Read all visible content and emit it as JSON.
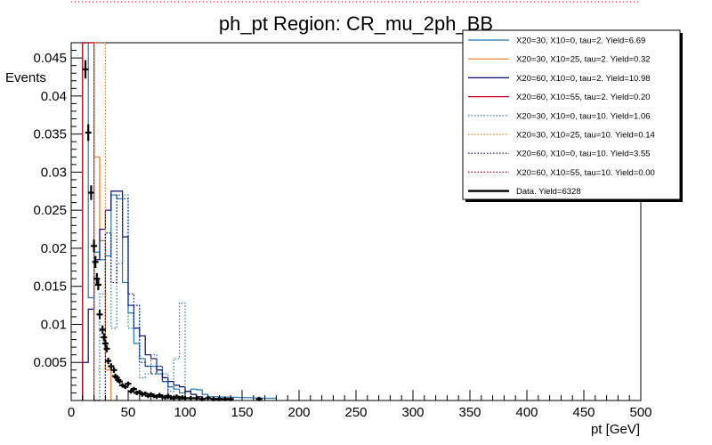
{
  "chart_data": {
    "type": "histogram",
    "title": "ph_pt Region: CR_mu_2ph_BB",
    "xlabel": "pt [GeV]",
    "ylabel": "Events",
    "xlim": [
      0,
      500
    ],
    "ylim": [
      0,
      0.047
    ],
    "bin_width": 5,
    "x_ticks": [
      0,
      50,
      100,
      150,
      200,
      250,
      300,
      350,
      400,
      450,
      500
    ],
    "y_ticks": [
      0.005,
      0.01,
      0.015,
      0.02,
      0.025,
      0.03,
      0.035,
      0.04,
      0.045
    ],
    "y_tick_labels": [
      "0.005",
      "0.01",
      "0.015",
      "0.02",
      "0.025",
      "0.03",
      "0.035",
      "0.04",
      "0.045"
    ],
    "legend_position": "top-right",
    "series": [
      {
        "name": "X20=30, X10=0, tau=2. Yield=6.69",
        "color": "#1f77b4",
        "dash": "solid",
        "bins": [
          [
            10,
            15,
            0.047
          ],
          [
            15,
            20,
            0.0135
          ],
          [
            20,
            25,
            0.0195
          ],
          [
            25,
            30,
            0.0185
          ],
          [
            30,
            35,
            0.019
          ],
          [
            35,
            40,
            0.027
          ],
          [
            40,
            45,
            0.0265
          ],
          [
            45,
            50,
            0.0155
          ],
          [
            50,
            55,
            0.0115
          ],
          [
            55,
            60,
            0.0075
          ],
          [
            60,
            65,
            0.0055
          ],
          [
            65,
            70,
            0.0045
          ],
          [
            70,
            75,
            0.0045
          ],
          [
            75,
            80,
            0.0035
          ],
          [
            80,
            85,
            0.0025
          ],
          [
            85,
            90,
            0.0018
          ],
          [
            90,
            95,
            0.0015
          ],
          [
            95,
            100,
            0.001
          ],
          [
            100,
            105,
            0.0012
          ],
          [
            105,
            110,
            0.0015
          ],
          [
            110,
            115,
            0.0014
          ],
          [
            115,
            120,
            0.0008
          ],
          [
            120,
            125,
            0.0005
          ],
          [
            175,
            180,
            0.0003
          ]
        ]
      },
      {
        "name": "X20=30, X10=25, tau=2. Yield=0.32",
        "color": "#e3761c",
        "dash": "solid",
        "bins": [
          [
            10,
            15,
            0.047
          ],
          [
            15,
            20,
            0.047
          ],
          [
            20,
            25,
            0.032
          ],
          [
            25,
            30,
            0.021
          ],
          [
            30,
            35,
            0.004
          ]
        ]
      },
      {
        "name": "X20=60, X10=0, tau=2. Yield=10.98",
        "color": "#0a0a6e",
        "dash": "solid",
        "bins": [
          [
            10,
            15,
            0.005
          ],
          [
            15,
            20,
            0.012
          ],
          [
            20,
            25,
            0.0185
          ],
          [
            25,
            30,
            0.0225
          ],
          [
            30,
            35,
            0.025
          ],
          [
            35,
            40,
            0.0275
          ],
          [
            40,
            45,
            0.0275
          ],
          [
            45,
            50,
            0.0215
          ],
          [
            50,
            55,
            0.0125
          ],
          [
            55,
            60,
            0.0095
          ],
          [
            60,
            65,
            0.0085
          ],
          [
            65,
            70,
            0.006
          ],
          [
            70,
            75,
            0.0055
          ],
          [
            75,
            80,
            0.004
          ],
          [
            80,
            85,
            0.003
          ],
          [
            85,
            90,
            0.0025
          ],
          [
            90,
            95,
            0.002
          ],
          [
            95,
            100,
            0.0018
          ],
          [
            100,
            105,
            0.0012
          ],
          [
            105,
            110,
            0.0008
          ],
          [
            110,
            115,
            0.0005
          ]
        ]
      },
      {
        "name": "X20=60, X10=55, tau=2. Yield=0.20",
        "color": "#c0001a",
        "dash": "solid",
        "bins": [
          [
            10,
            15,
            0.047
          ],
          [
            15,
            20,
            0.047
          ],
          [
            20,
            25,
            0.0
          ]
        ]
      },
      {
        "name": "X20=30, X10=0, tau=10. Yield=1.06",
        "color": "#1f77b4",
        "dash": "dotted",
        "bins": [
          [
            25,
            30,
            0.014
          ],
          [
            30,
            35,
            0.022
          ],
          [
            35,
            40,
            0.0095
          ],
          [
            40,
            45,
            0.018
          ],
          [
            45,
            50,
            0.027
          ],
          [
            50,
            55,
            0.0095
          ],
          [
            55,
            60,
            0.0125
          ],
          [
            60,
            65,
            0.003
          ],
          [
            65,
            70,
            0.0035
          ],
          [
            70,
            75,
            0.006
          ],
          [
            75,
            80,
            0.0045
          ],
          [
            80,
            85,
            0.0035
          ],
          [
            85,
            90,
            0.0012
          ],
          [
            90,
            95,
            0.0055
          ],
          [
            95,
            100,
            0.0128
          ],
          [
            100,
            105,
            0.0
          ]
        ]
      },
      {
        "name": "X20=30, X10=25, tau=10. Yield=0.14",
        "color": "#e3761c",
        "dash": "dotted",
        "bins": [
          [
            20,
            25,
            0.047
          ],
          [
            25,
            30,
            0.047
          ],
          [
            30,
            35,
            0.0
          ]
        ]
      },
      {
        "name": "X20=60, X10=0, tau=10. Yield=3.55",
        "color": "#0a0a6e",
        "dash": "dotted",
        "bins": [
          [
            30,
            35,
            0.022
          ],
          [
            35,
            40,
            0.0155
          ],
          [
            40,
            45,
            0.027
          ],
          [
            45,
            50,
            0.0265
          ],
          [
            50,
            55,
            0.014
          ],
          [
            55,
            60,
            0.0125
          ],
          [
            60,
            65,
            0.005
          ],
          [
            65,
            70,
            0.0045
          ],
          [
            70,
            75,
            0.0035
          ],
          [
            75,
            80,
            0.0045
          ],
          [
            80,
            85,
            0.0025
          ]
        ]
      },
      {
        "name": "X20=60, X10=55, tau=10. Yield=0.00",
        "color": "#c0001a",
        "dash": "dotted",
        "bins": []
      }
    ],
    "data_series": {
      "name": "Data. Yield=6328",
      "color": "#000000",
      "points": [
        [
          12.5,
          0.0435
        ],
        [
          15.0,
          0.0352
        ],
        [
          17.5,
          0.0273
        ],
        [
          20.0,
          0.0203
        ],
        [
          21.25,
          0.0182
        ],
        [
          22.5,
          0.016
        ],
        [
          23.75,
          0.0152
        ],
        [
          25.0,
          0.0113
        ],
        [
          27.5,
          0.0093
        ],
        [
          28.75,
          0.0083
        ],
        [
          30.0,
          0.0075
        ],
        [
          31.25,
          0.0068
        ],
        [
          32.5,
          0.0052
        ],
        [
          35.0,
          0.0045
        ],
        [
          37.5,
          0.004
        ],
        [
          38.75,
          0.0032
        ],
        [
          40.0,
          0.003
        ],
        [
          41.25,
          0.0027
        ],
        [
          42.5,
          0.0025
        ],
        [
          45.0,
          0.002
        ],
        [
          47.5,
          0.0018
        ],
        [
          50.0,
          0.0022
        ],
        [
          52.5,
          0.0012
        ],
        [
          55.0,
          0.0015
        ],
        [
          57.5,
          0.001
        ],
        [
          60.0,
          0.0011
        ],
        [
          62.5,
          0.0008
        ],
        [
          65.0,
          0.0009
        ],
        [
          67.5,
          0.0006
        ],
        [
          70.0,
          0.0008
        ],
        [
          72.5,
          0.0006
        ],
        [
          75.0,
          0.0005
        ],
        [
          77.5,
          0.0007
        ],
        [
          80.0,
          0.0005
        ],
        [
          82.5,
          0.0004
        ],
        [
          85.0,
          0.0006
        ],
        [
          87.5,
          0.0004
        ],
        [
          90.0,
          0.0003
        ],
        [
          92.5,
          0.0005
        ],
        [
          95.0,
          0.0003
        ],
        [
          97.5,
          0.0004
        ],
        [
          100.0,
          0.0003
        ],
        [
          105.0,
          0.0003
        ],
        [
          110.0,
          0.0003
        ],
        [
          115.0,
          0.0002
        ],
        [
          120.0,
          0.0003
        ],
        [
          125.0,
          0.0002
        ],
        [
          130.0,
          0.0002
        ],
        [
          135.0,
          0.0002
        ],
        [
          140.0,
          0.0002
        ],
        [
          165.0,
          0.0002
        ]
      ]
    }
  }
}
